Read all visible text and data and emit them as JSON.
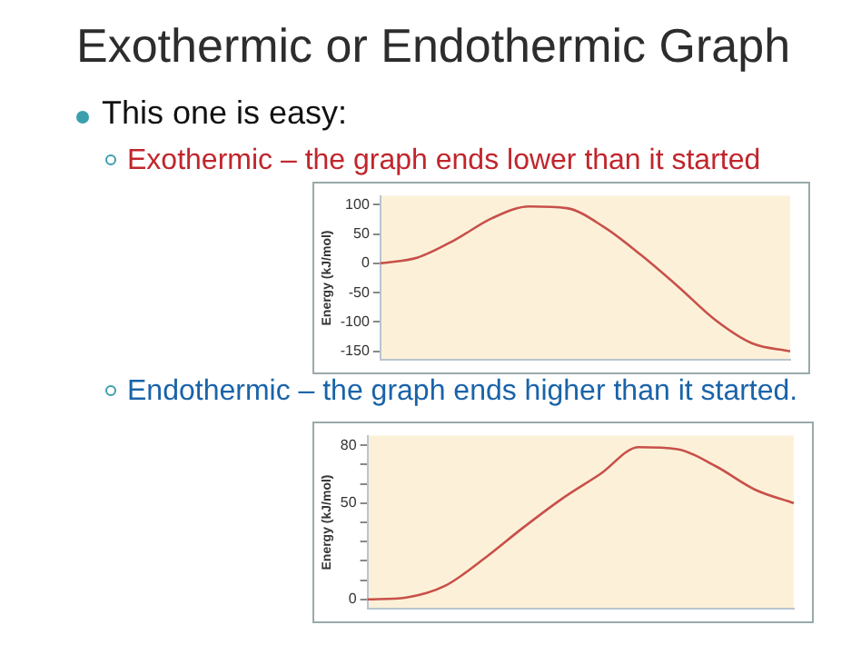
{
  "chart_data": [
    {
      "type": "line",
      "title": "Exothermic or Endothermic Graph",
      "annotations": [
        "This one is easy:",
        "Exothermic – the graph ends lower than it started"
      ],
      "ylabel": "Energy (kJ/mol)",
      "categories": [
        null,
        null,
        null,
        null,
        null,
        null,
        null,
        null,
        null,
        null,
        null,
        null
      ],
      "series": [
        {
          "color": "#c8504a",
          "values": [
            0,
            10,
            40,
            77,
            97,
            94,
            62,
            14,
            -40,
            -97,
            -137,
            -150
          ]
        }
      ],
      "ylim": [
        -165,
        115
      ],
      "yticks": [
        -150,
        -100,
        -50,
        0,
        50,
        100
      ],
      "tick_labels": "y",
      "grid": false,
      "legend": false,
      "marker": "none"
    },
    {
      "type": "line",
      "annotations": [
        "Endothermic – the graph ends higher than it started."
      ],
      "ylabel": "Energy (kJ/mol)",
      "categories": [
        null,
        null,
        null,
        null,
        null,
        null,
        null,
        null,
        null,
        null,
        null,
        null
      ],
      "series": [
        {
          "color": "#c8504a",
          "values": [
            0,
            1,
            7,
            21,
            37,
            52,
            65,
            79,
            78,
            69,
            57,
            50
          ]
        }
      ],
      "ylim": [
        -5,
        85
      ],
      "yticks": [
        0,
        {
          "value": 10,
          "label": null
        },
        {
          "value": 20,
          "label": null
        },
        {
          "value": 30,
          "label": null
        },
        {
          "value": 40,
          "label": null
        },
        50,
        {
          "value": 60,
          "label": null
        },
        {
          "value": 70,
          "label": null
        },
        80
      ],
      "tick_labels": "y",
      "grid": false,
      "legend": false,
      "marker": "none"
    }
  ]
}
